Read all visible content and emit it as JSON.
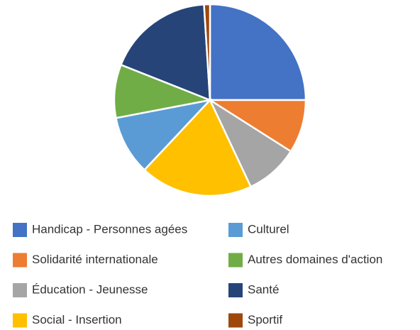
{
  "chart_data": {
    "type": "pie",
    "categories": [
      "Handicap - Personnes agées",
      "Solidarité internationale",
      "Éducation - Jeunesse",
      "Social - Insertion",
      "Culturel",
      "Autres domaines d'action",
      "Santé",
      "Sportif"
    ],
    "values": [
      25,
      9,
      9,
      19,
      10,
      9,
      18,
      1
    ],
    "colors": [
      "#4472c4",
      "#ed7d31",
      "#a5a5a5",
      "#ffc000",
      "#5b9bd5",
      "#70ad47",
      "#264478",
      "#9e480e"
    ],
    "legend": "bottom"
  }
}
